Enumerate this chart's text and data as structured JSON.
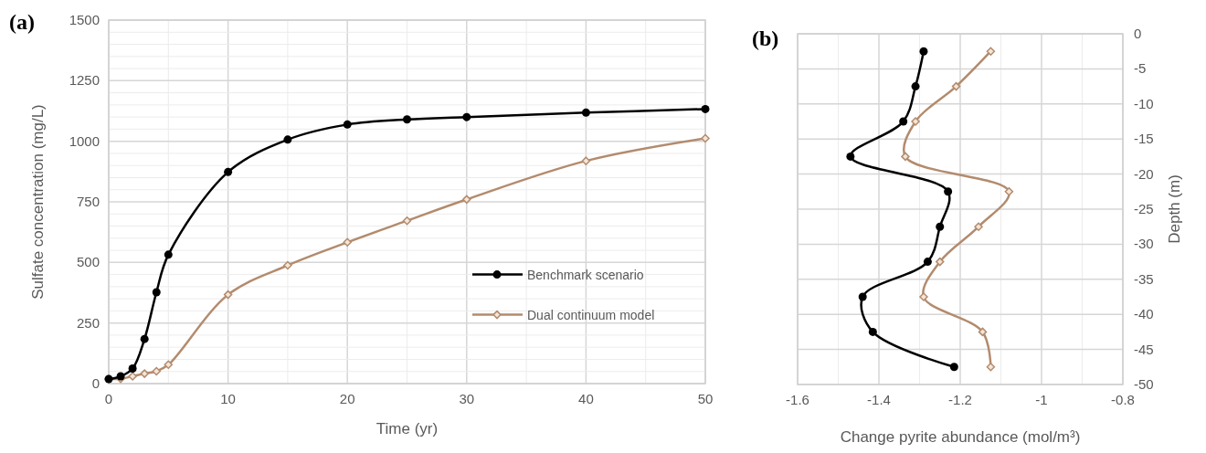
{
  "chart_data": [
    {
      "type": "line",
      "title": "(a)",
      "xlabel": "Time (yr)",
      "ylabel": "Sulfate concentration (mg/L)",
      "x": [
        0,
        1,
        2,
        3,
        4,
        5,
        10,
        15,
        20,
        25,
        30,
        40,
        50
      ],
      "series": [
        {
          "name": "Benchmark scenario",
          "color": "#000000",
          "marker": "circle",
          "values": [
            19,
            30,
            62,
            184,
            377,
            532,
            873,
            1007,
            1069,
            1090,
            1100,
            1118,
            1133
          ]
        },
        {
          "name": "Dual continuum model",
          "color": "#b38b6d",
          "marker": "diamond",
          "values": [
            19,
            20,
            30,
            41,
            51,
            78,
            367,
            488,
            583,
            672,
            760,
            919,
            1012
          ]
        }
      ],
      "xlim": [
        0,
        50
      ],
      "xticks": [
        0,
        {
          "value": 5,
          "label": null
        },
        10,
        {
          "value": 15,
          "label": null
        },
        20,
        {
          "value": 25,
          "label": null
        },
        30,
        {
          "value": 35,
          "label": null
        },
        40,
        {
          "value": 45,
          "label": null
        },
        50
      ],
      "ylim": [
        0,
        1500
      ],
      "yticks": [
        0,
        {
          "value": 50,
          "label": null
        },
        {
          "value": 100,
          "label": null
        },
        {
          "value": 150,
          "label": null
        },
        {
          "value": 200,
          "label": null
        },
        250,
        {
          "value": 300,
          "label": null
        },
        {
          "value": 350,
          "label": null
        },
        {
          "value": 400,
          "label": null
        },
        {
          "value": 450,
          "label": null
        },
        500,
        {
          "value": 550,
          "label": null
        },
        {
          "value": 600,
          "label": null
        },
        {
          "value": 650,
          "label": null
        },
        {
          "value": 700,
          "label": null
        },
        750,
        {
          "value": 800,
          "label": null
        },
        {
          "value": 850,
          "label": null
        },
        {
          "value": 900,
          "label": null
        },
        {
          "value": 950,
          "label": null
        },
        1000,
        {
          "value": 1050,
          "label": null
        },
        {
          "value": 1100,
          "label": null
        },
        {
          "value": 1150,
          "label": null
        },
        {
          "value": 1200,
          "label": null
        },
        1250,
        {
          "value": 1300,
          "label": null
        },
        {
          "value": 1350,
          "label": null
        },
        {
          "value": 1400,
          "label": null
        },
        {
          "value": 1450,
          "label": null
        },
        1500
      ],
      "grid": true,
      "legend": "right"
    },
    {
      "type": "line",
      "title": "(b)",
      "xlabel": "Change pyrite abundance (mol/m³)",
      "ylabel": "Depth (m)",
      "series": [
        {
          "color": "#000000",
          "marker": "circle",
          "x": [
            -1.29,
            -1.31,
            -1.34,
            -1.47,
            -1.23,
            -1.25,
            -1.28,
            -1.44,
            -1.415,
            -1.215
          ],
          "values": [
            -2.5,
            -7.5,
            -12.5,
            -17.5,
            -22.5,
            -27.5,
            -32.5,
            -37.5,
            -42.5,
            -47.5
          ]
        },
        {
          "color": "#b38b6d",
          "marker": "diamond",
          "x": [
            -1.125,
            -1.21,
            -1.31,
            -1.335,
            -1.08,
            -1.155,
            -1.25,
            -1.29,
            -1.145,
            -1.125
          ],
          "values": [
            -2.5,
            -7.5,
            -12.5,
            -17.5,
            -22.5,
            -27.5,
            -32.5,
            -37.5,
            -42.5,
            -47.5
          ]
        }
      ],
      "xlim": [
        -1.6,
        -0.8
      ],
      "xticks": [
        -1.6,
        {
          "value": -1.5,
          "label": null
        },
        -1.4,
        {
          "value": -1.3,
          "label": null
        },
        -1.2,
        {
          "value": -1.1,
          "label": null
        },
        -1,
        {
          "value": -0.9,
          "label": null
        },
        -0.8
      ],
      "ylim": [
        -50,
        0
      ],
      "yticks": [
        -50,
        -45,
        -40,
        -35,
        -30,
        -25,
        -20,
        -15,
        -10,
        -5,
        0
      ],
      "grid": true
    }
  ]
}
